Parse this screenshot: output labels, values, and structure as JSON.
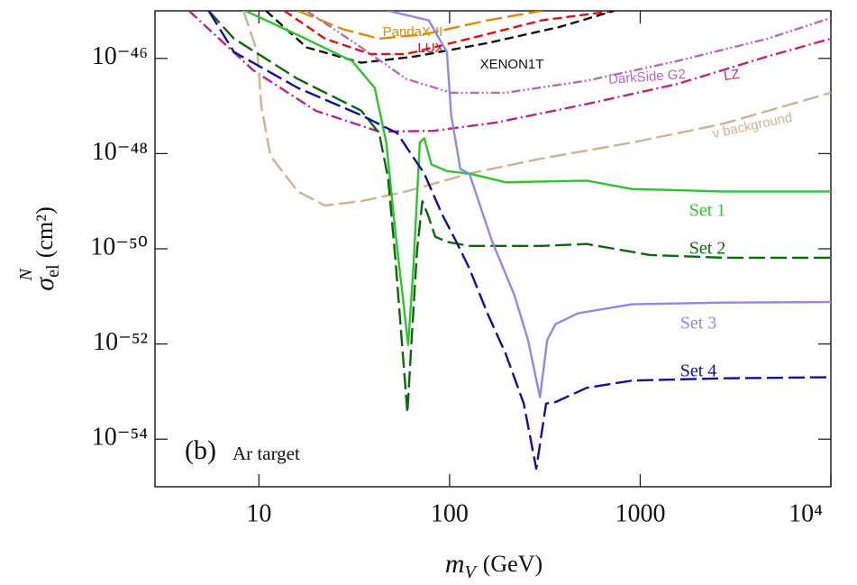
{
  "chart_data": {
    "type": "line",
    "log_x": true,
    "log_y": true,
    "xlim": [
      2.85,
      10000
    ],
    "ylim": [
      1e-55,
      1e-45
    ],
    "xticks": [
      10,
      100,
      1000,
      {
        "value": 10000,
        "label": "10⁴"
      }
    ],
    "yticks": [
      {
        "value": 1e-54,
        "label": "10⁻⁵⁴"
      },
      {
        "value": 1e-52,
        "label": "10⁻⁵²"
      },
      {
        "value": 1e-50,
        "label": "10⁻⁵⁰"
      },
      {
        "value": 1e-48,
        "label": "10⁻⁴⁸"
      },
      {
        "value": 1e-46,
        "label": "10⁻⁴⁶"
      }
    ],
    "x_label": {
      "symbol": "m",
      "subscript": "V",
      "unit": "(GeV)"
    },
    "y_label": {
      "symbol": "σ",
      "subscript": "el",
      "superscript": "N",
      "unit": "(cm²)"
    },
    "annotations": [
      "(b)",
      "Ar target"
    ],
    "series": [
      {
        "name": "PandaX-II",
        "color": "#e08a00",
        "dash": "long-dash",
        "x": [
          16,
          27.6,
          42.7,
          73.7,
          158,
          304
        ],
        "values": [
          1e-45,
          4.1e-46,
          2.6e-46,
          3.2e-46,
          6.3e-46,
          1e-45
        ]
      },
      {
        "name": "LUX",
        "color": "#e01010",
        "dash": "dashed",
        "x": [
          13.6,
          22.2,
          38.3,
          59.3,
          127,
          304,
          730
        ],
        "values": [
          1e-45,
          2.6e-46,
          1.24e-46,
          1.24e-46,
          2.6e-46,
          6.3e-46,
          1e-45
        ]
      },
      {
        "name": "XENON1T",
        "color": "#111111",
        "dash": "dashed",
        "x": [
          10.9,
          17.8,
          34.4,
          66.1,
          158,
          379,
          730
        ],
        "values": [
          1e-45,
          1.7e-46,
          8.1e-47,
          1.1e-46,
          2.1e-46,
          4.6e-46,
          1e-45
        ]
      },
      {
        "name": "DarkSide G2",
        "color": "#b868c0",
        "dash": "dash-dot-dot",
        "x": [
          17.8,
          34.4,
          59.3,
          102,
          197,
          525,
          1564,
          4660,
          10000
        ],
        "values": [
          1e-45,
          1.7e-46,
          3.7e-47,
          1.9e-47,
          1.9e-47,
          3.4e-47,
          8.8e-47,
          2.6e-46,
          7.1e-46
        ]
      },
      {
        "name": "LZ",
        "color": "#c0208a",
        "dash": "dash-dot",
        "x": [
          4.3,
          9.3,
          19.9,
          42.7,
          82.2,
          176,
          525,
          1564,
          4660,
          10000
        ],
        "values": [
          1e-45,
          5.7e-47,
          7.9e-48,
          2.9e-48,
          3e-48,
          4.5e-48,
          1.1e-47,
          2.9e-47,
          1.1e-46,
          2.6e-46
        ]
      },
      {
        "name": "ν background",
        "color": "#d2b090",
        "dash": "long-dash",
        "x": [
          8.3,
          9.8,
          10.3,
          11.5,
          16,
          22.2,
          34.4,
          59.3,
          127,
          304,
          906,
          2700,
          10000
        ],
        "values": [
          1e-45,
          1.36e-46,
          1e-47,
          8.9e-49,
          1.6e-49,
          8.1e-50,
          1e-49,
          1.6e-49,
          3.8e-49,
          7.9e-49,
          1.7e-48,
          4.2e-48,
          1.9e-47
        ]
      },
      {
        "name": "Set 1",
        "color": "#2ec42e",
        "dash": "solid",
        "x": [
          8.5,
          16,
          30.8,
          40.5,
          46.6,
          52,
          56.8,
          60.6,
          64.6,
          69.8,
          73.7,
          80.4,
          96.8,
          127,
          197,
          525,
          906,
          2700,
          10000
        ],
        "values": [
          1e-45,
          3.1e-46,
          8.8e-47,
          2.4e-47,
          1.7e-48,
          2.2e-50,
          1e-51,
          9.5e-53,
          3.9e-51,
          1.7e-48,
          2.1e-48,
          5.9e-49,
          4.3e-49,
          3.8e-49,
          2.5e-49,
          2.7e-49,
          1.8e-49,
          1.6e-49,
          1.6e-49
        ]
      },
      {
        "name": "Set 2",
        "color": "#0a6a0a",
        "dash": "long-dash",
        "x": [
          5.45,
          7.4,
          16,
          34.4,
          42.7,
          47.6,
          52,
          56.1,
          60.1,
          63.2,
          67.5,
          72,
          76.9,
          84,
          96.8,
          127,
          304,
          525,
          1127,
          2700,
          10000
        ],
        "values": [
          1e-45,
          2.6e-46,
          3.7e-47,
          8e-48,
          2.7e-48,
          3e-49,
          6e-51,
          1.2e-52,
          3.6e-54,
          1.2e-52,
          9.3e-51,
          1e-49,
          5.2e-50,
          1.8e-50,
          1.4e-50,
          1.15e-50,
          1.15e-50,
          1.26e-50,
          7.4e-51,
          6.5e-51,
          6.5e-51
        ]
      },
      {
        "name": "Set 3",
        "color": "#8a8af0",
        "dash": "solid",
        "x": [
          47.6,
          77.8,
          96.8,
          102,
          114,
          127,
          167,
          219,
          258,
          298,
          325,
          359,
          471,
          906,
          2700,
          10000
        ],
        "values": [
          1e-45,
          6.3e-46,
          1.36e-46,
          6.4e-48,
          4.7e-49,
          3.8e-49,
          1.45e-50,
          1.05e-51,
          1.2e-52,
          7.6e-54,
          1.2e-52,
          2.6e-52,
          4.4e-52,
          6.8e-52,
          7.4e-52,
          7.6e-52
        ]
      },
      {
        "name": "Set 4",
        "color": "#10109a",
        "dash": "long-dash",
        "x": [
          5.45,
          7.4,
          16,
          34.4,
          53,
          73.7,
          91.6,
          108,
          127,
          158,
          197,
          245,
          285,
          321,
          359,
          525,
          906,
          2700,
          10000
        ],
        "values": [
          1e-45,
          1.36e-46,
          2.4e-47,
          6.4e-48,
          2.7e-48,
          3.8e-49,
          5.2e-50,
          1.45e-50,
          3.9e-51,
          4.4e-52,
          6.2e-53,
          5.6e-54,
          2.4e-55,
          5.6e-54,
          6e-54,
          1.2e-53,
          1.7e-53,
          1.9e-53,
          2e-53
        ]
      }
    ]
  }
}
